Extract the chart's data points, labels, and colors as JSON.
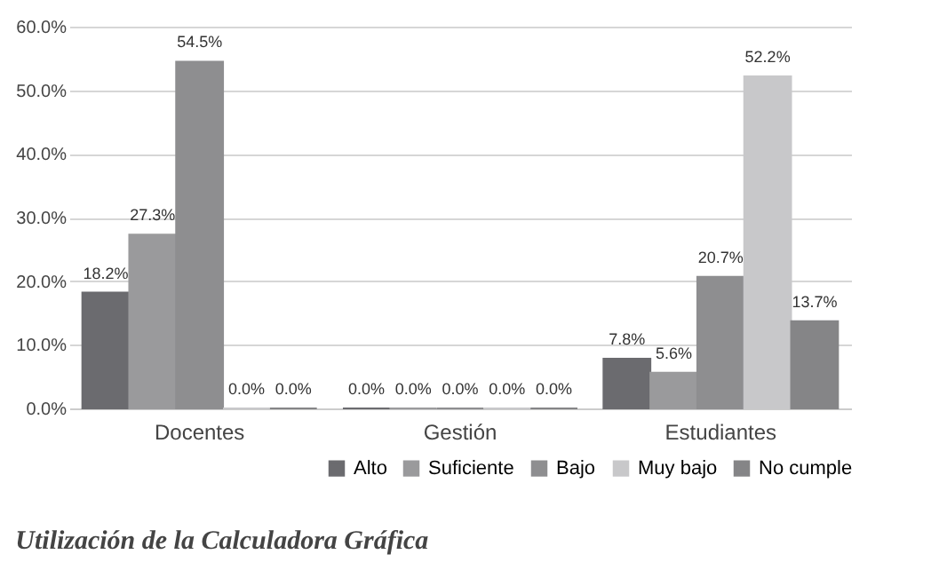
{
  "chart_data": {
    "type": "bar",
    "title": "Utilización de la Calculadora Gráfica",
    "categories": [
      "Docentes",
      "Gestión",
      "Estudiantes"
    ],
    "series": [
      {
        "name": "Alto",
        "color": "#6b6b6f",
        "values": [
          18.2,
          0.0,
          7.8
        ],
        "value_labels": [
          "18.2%",
          "0.0%",
          "7.8%"
        ]
      },
      {
        "name": "Suficiente",
        "color": "#9a9a9c",
        "values": [
          27.3,
          0.0,
          5.6
        ],
        "value_labels": [
          "27.3%",
          "0.0%",
          "5.6%"
        ]
      },
      {
        "name": "Bajo",
        "color": "#8e8e90",
        "values": [
          54.5,
          0.0,
          20.7
        ],
        "value_labels": [
          "54.5%",
          "0.0%",
          "20.7%"
        ]
      },
      {
        "name": "Muy bajo",
        "color": "#c8c8ca",
        "values": [
          0.0,
          0.0,
          52.2
        ],
        "value_labels": [
          "0.0%",
          "0.0%",
          "52.2%"
        ]
      },
      {
        "name": "No cumple",
        "color": "#858587",
        "values": [
          0.0,
          0.0,
          13.7
        ],
        "value_labels": [
          "0.0%",
          "0.0%",
          "13.7%"
        ]
      }
    ],
    "ylim": [
      0,
      60
    ],
    "yticks": [
      {
        "value": 0,
        "label": "0.0%"
      },
      {
        "value": 10,
        "label": "10.0%"
      },
      {
        "value": 20,
        "label": "20.0%"
      },
      {
        "value": 30,
        "label": "30.0%"
      },
      {
        "value": 40,
        "label": "40.0%"
      },
      {
        "value": 50,
        "label": "50.0%"
      },
      {
        "value": 60,
        "label": "60.0%"
      }
    ],
    "grid": "y",
    "legend": "bottom right"
  }
}
